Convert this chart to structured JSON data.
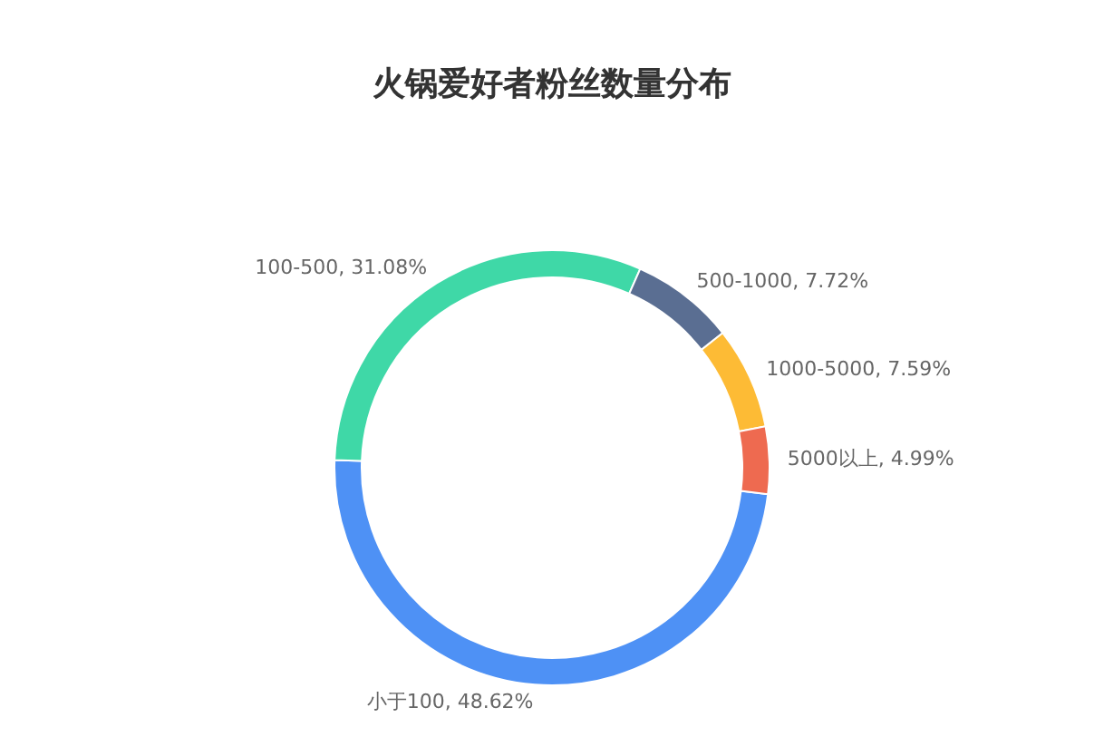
{
  "chart_data": {
    "type": "donut",
    "title": "火锅爱好者粉丝数量分布",
    "categories": [
      "小于100",
      "100-500",
      "500-1000",
      "1000-5000",
      "5000以上"
    ],
    "values": [
      48.62,
      31.08,
      7.72,
      7.59,
      4.99
    ],
    "colors": [
      "#4e91f5",
      "#3fd8a7",
      "#5a6e92",
      "#fdbb35",
      "#ee6a50"
    ],
    "value_labels": [
      ", 48.62%",
      ", 31.08%",
      ", 7.72%",
      ", 7.59%",
      ", 4.99%"
    ],
    "legend": false
  }
}
